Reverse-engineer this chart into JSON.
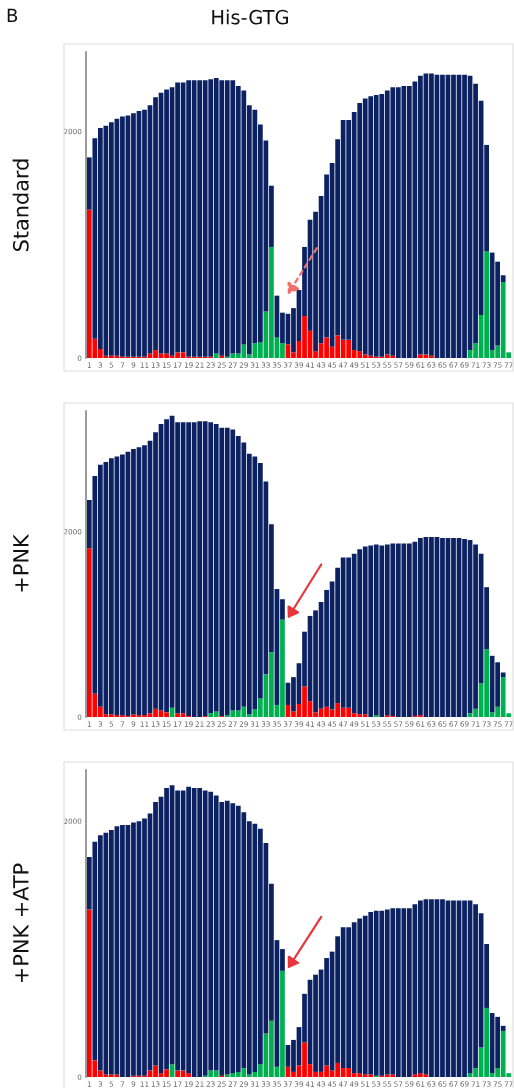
{
  "chart_data": [
    {
      "type": "bar",
      "stacked": true,
      "title": "His-GTG",
      "ylabel": "Standard",
      "annotations": [
        "B"
      ],
      "ylim": [
        0,
        2700
      ],
      "yticks": [
        0,
        2000
      ],
      "categories": [
        "1",
        null,
        "3",
        null,
        "5",
        null,
        "7",
        null,
        "9",
        null,
        "11",
        null,
        "13",
        null,
        "15",
        null,
        "17",
        null,
        "19",
        null,
        "21",
        null,
        "23",
        null,
        "25",
        null,
        "27",
        null,
        "29",
        null,
        "31",
        null,
        "33",
        null,
        "35",
        null,
        "37",
        null,
        "39",
        null,
        "41",
        null,
        "43",
        null,
        "45",
        null,
        "47",
        null,
        "49",
        null,
        "51",
        null,
        "53",
        null,
        "55",
        null,
        "57",
        null,
        "59",
        null,
        "61",
        null,
        "63",
        null,
        "65",
        null,
        "67",
        null,
        "69",
        null,
        "71",
        null,
        "73",
        null,
        "75",
        null,
        "77"
      ],
      "series": [
        {
          "color": "#ff0000",
          "values": [
            1310,
            170,
            80,
            20,
            20,
            20,
            10,
            10,
            10,
            10,
            10,
            40,
            70,
            40,
            40,
            20,
            50,
            50,
            10,
            10,
            10,
            10,
            10,
            0,
            20,
            0,
            0,
            0,
            0,
            0,
            0,
            0,
            0,
            0,
            0,
            0,
            120,
            50,
            150,
            370,
            240,
            60,
            130,
            180,
            100,
            200,
            160,
            160,
            70,
            60,
            30,
            20,
            10,
            10,
            30,
            20,
            0,
            0,
            0,
            0,
            30,
            30,
            20,
            0,
            0,
            0,
            0,
            0,
            0,
            0,
            0,
            0,
            0,
            0,
            0,
            0,
            0
          ]
        },
        {
          "color": "#00b050",
          "values": [
            0,
            0,
            0,
            0,
            0,
            0,
            0,
            0,
            0,
            0,
            0,
            0,
            0,
            0,
            0,
            0,
            0,
            0,
            0,
            0,
            0,
            0,
            0,
            40,
            0,
            10,
            40,
            40,
            120,
            30,
            130,
            140,
            410,
            980,
            180,
            130,
            0,
            0,
            0,
            0,
            0,
            0,
            0,
            0,
            0,
            0,
            0,
            0,
            0,
            0,
            0,
            0,
            0,
            0,
            0,
            0,
            0,
            0,
            0,
            0,
            0,
            0,
            0,
            0,
            0,
            0,
            0,
            0,
            0,
            70,
            130,
            380,
            940,
            70,
            110,
            670,
            50
          ]
        },
        {
          "color": "#0b2161",
          "values": [
            460,
            1770,
            1950,
            2030,
            2060,
            2090,
            2120,
            2130,
            2150,
            2170,
            2180,
            2190,
            2230,
            2300,
            2330,
            2370,
            2380,
            2380,
            2440,
            2440,
            2440,
            2440,
            2450,
            2430,
            2430,
            2440,
            2410,
            2360,
            2240,
            2200,
            2060,
            1920,
            1510,
            540,
            370,
            270,
            270,
            390,
            450,
            610,
            980,
            1230,
            1300,
            1440,
            1620,
            1730,
            1940,
            1940,
            2100,
            2190,
            2260,
            2290,
            2310,
            2320,
            2330,
            2370,
            2390,
            2400,
            2400,
            2440,
            2460,
            2480,
            2490,
            2500,
            2500,
            2500,
            2500,
            2500,
            2500,
            2420,
            2290,
            1890,
            940,
            860,
            740,
            60,
            0
          ]
        }
      ]
    },
    {
      "type": "bar",
      "stacked": true,
      "ylabel": "+PNK",
      "ylim": [
        0,
        3300
      ],
      "yticks": [
        0,
        2000
      ],
      "categories": [
        "1",
        null,
        "3",
        null,
        "5",
        null,
        "7",
        null,
        "9",
        null,
        "11",
        null,
        "13",
        null,
        "15",
        null,
        "17",
        null,
        "19",
        null,
        "21",
        null,
        "23",
        null,
        "25",
        null,
        "27",
        null,
        "29",
        null,
        "31",
        null,
        "33",
        null,
        "35",
        null,
        "37",
        null,
        "39",
        null,
        "41",
        null,
        "43",
        null,
        "45",
        null,
        "47",
        null,
        "49",
        null,
        "51",
        null,
        "53",
        null,
        "55",
        null,
        "57",
        null,
        "59",
        null,
        "61",
        null,
        "63",
        null,
        "65",
        null,
        "67",
        null,
        "69",
        null,
        "71",
        null,
        "73",
        null,
        "75",
        null,
        "77"
      ],
      "series": [
        {
          "color": "#ff0000",
          "values": [
            1820,
            250,
            110,
            30,
            30,
            20,
            20,
            10,
            30,
            20,
            20,
            40,
            90,
            70,
            50,
            0,
            40,
            40,
            10,
            0,
            0,
            10,
            0,
            0,
            10,
            0,
            0,
            0,
            0,
            0,
            0,
            0,
            0,
            0,
            0,
            0,
            130,
            60,
            140,
            330,
            170,
            50,
            90,
            110,
            80,
            150,
            100,
            100,
            40,
            30,
            30,
            0,
            0,
            0,
            20,
            10,
            0,
            0,
            0,
            10,
            20,
            0,
            0,
            0,
            0,
            0,
            0,
            0,
            0,
            0,
            0,
            0,
            0,
            0,
            0,
            0,
            0
          ]
        },
        {
          "color": "#00b050",
          "values": [
            0,
            0,
            0,
            0,
            0,
            0,
            0,
            0,
            0,
            0,
            0,
            0,
            0,
            0,
            0,
            100,
            0,
            0,
            0,
            0,
            0,
            0,
            40,
            60,
            0,
            20,
            70,
            70,
            110,
            30,
            80,
            200,
            460,
            700,
            130,
            1050,
            0,
            0,
            0,
            0,
            0,
            0,
            0,
            0,
            0,
            0,
            0,
            0,
            0,
            0,
            0,
            0,
            20,
            0,
            0,
            0,
            0,
            0,
            0,
            0,
            0,
            0,
            0,
            0,
            0,
            0,
            0,
            0,
            0,
            40,
            90,
            360,
            730,
            50,
            110,
            430,
            40
          ]
        },
        {
          "color": "#0b2161",
          "values": [
            520,
            2350,
            2610,
            2720,
            2760,
            2790,
            2810,
            2850,
            2860,
            2890,
            2910,
            2940,
            2980,
            3090,
            3160,
            3150,
            3140,
            3140,
            3170,
            3180,
            3190,
            3180,
            3140,
            3100,
            3110,
            3100,
            3030,
            2960,
            2850,
            2810,
            2730,
            2540,
            2080,
            1380,
            1250,
            220,
            240,
            370,
            440,
            590,
            920,
            1100,
            1150,
            1260,
            1380,
            1460,
            1620,
            1620,
            1720,
            1780,
            1810,
            1850,
            1840,
            1850,
            1840,
            1860,
            1870,
            1870,
            1870,
            1880,
            1910,
            1940,
            1940,
            1940,
            1930,
            1930,
            1930,
            1930,
            1920,
            1870,
            1770,
            1400,
            670,
            610,
            480,
            50,
            0
          ]
        }
      ]
    },
    {
      "type": "bar",
      "stacked": true,
      "ylabel": "+PNK +ATP",
      "ylim": [
        0,
        2400
      ],
      "yticks": [
        0,
        2000
      ],
      "categories": [
        "1",
        null,
        "3",
        null,
        "5",
        null,
        "7",
        null,
        "9",
        null,
        "11",
        null,
        "13",
        null,
        "15",
        null,
        "17",
        null,
        "19",
        null,
        "21",
        null,
        "23",
        null,
        "25",
        null,
        "27",
        null,
        "29",
        null,
        "31",
        null,
        "33",
        null,
        "35",
        null,
        "37",
        null,
        "39",
        null,
        "41",
        null,
        "43",
        null,
        "45",
        null,
        "47",
        null,
        "49",
        null,
        "51",
        null,
        "53",
        null,
        "55",
        null,
        "57",
        null,
        "59",
        null,
        "61",
        null,
        "63",
        null,
        "65",
        null,
        "67",
        null,
        "69",
        null,
        "71",
        null,
        "73",
        null,
        "75",
        null,
        "77"
      ],
      "series": [
        {
          "color": "#ff0000",
          "values": [
            1310,
            130,
            50,
            20,
            20,
            20,
            0,
            0,
            10,
            10,
            10,
            50,
            90,
            30,
            60,
            0,
            50,
            50,
            30,
            0,
            0,
            0,
            0,
            0,
            10,
            0,
            0,
            0,
            0,
            0,
            0,
            0,
            0,
            0,
            0,
            0,
            80,
            40,
            90,
            270,
            100,
            40,
            40,
            90,
            50,
            110,
            70,
            70,
            30,
            30,
            20,
            20,
            0,
            10,
            20,
            20,
            0,
            0,
            0,
            20,
            30,
            20,
            0,
            0,
            0,
            0,
            0,
            0,
            0,
            0,
            0,
            0,
            0,
            0,
            0,
            0,
            0
          ]
        },
        {
          "color": "#00b050",
          "values": [
            0,
            0,
            0,
            0,
            0,
            0,
            0,
            0,
            0,
            0,
            0,
            0,
            0,
            0,
            0,
            100,
            0,
            0,
            0,
            0,
            0,
            10,
            50,
            50,
            0,
            20,
            30,
            40,
            70,
            20,
            40,
            100,
            340,
            440,
            80,
            830,
            0,
            0,
            0,
            0,
            0,
            0,
            0,
            0,
            0,
            0,
            0,
            0,
            0,
            0,
            0,
            0,
            10,
            0,
            0,
            0,
            0,
            0,
            0,
            0,
            0,
            0,
            0,
            0,
            0,
            0,
            0,
            0,
            0,
            30,
            70,
            230,
            540,
            30,
            70,
            360,
            30
          ]
        },
        {
          "color": "#0b2161",
          "values": [
            410,
            1710,
            1840,
            1890,
            1910,
            1940,
            1970,
            1970,
            1980,
            1990,
            2010,
            2010,
            2060,
            2160,
            2200,
            2180,
            2190,
            2190,
            2240,
            2260,
            2260,
            2230,
            2180,
            2150,
            2140,
            2140,
            2110,
            2080,
            2000,
            1980,
            1940,
            1840,
            1490,
            1070,
            990,
            170,
            170,
            250,
            300,
            380,
            660,
            760,
            800,
            840,
            930,
            990,
            1100,
            1100,
            1180,
            1210,
            1240,
            1270,
            1290,
            1290,
            1290,
            1300,
            1320,
            1320,
            1320,
            1330,
            1350,
            1370,
            1390,
            1390,
            1390,
            1380,
            1380,
            1380,
            1380,
            1350,
            1280,
            1050,
            500,
            470,
            400,
            40,
            0
          ]
        }
      ]
    }
  ]
}
